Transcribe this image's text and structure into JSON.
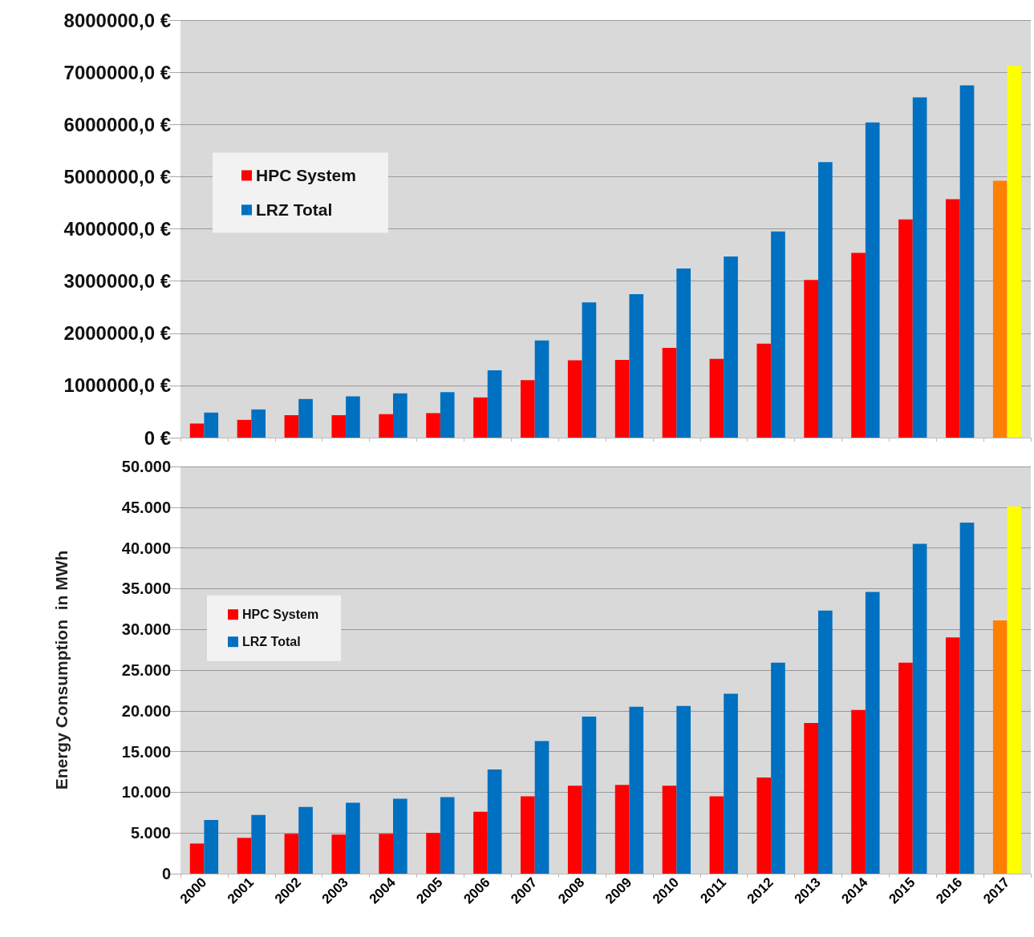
{
  "chart_data": [
    {
      "type": "bar",
      "categories": [
        "2000",
        "2001",
        "2002",
        "2003",
        "2004",
        "2005",
        "2006",
        "2007",
        "2008",
        "2009",
        "2010",
        "2011",
        "2012",
        "2013",
        "2014",
        "2015",
        "2016",
        "2017"
      ],
      "series": [
        {
          "name": "HPC System",
          "color": "#ff0000",
          "colors": [
            "#ff0000",
            "#ff0000",
            "#ff0000",
            "#ff0000",
            "#ff0000",
            "#ff0000",
            "#ff0000",
            "#ff0000",
            "#ff0000",
            "#ff0000",
            "#ff0000",
            "#ff0000",
            "#ff0000",
            "#ff0000",
            "#ff0000",
            "#ff0000",
            "#ff0000",
            "#ff8000"
          ],
          "values": [
            270000,
            340000,
            430000,
            430000,
            450000,
            470000,
            770000,
            1100000,
            1480000,
            1490000,
            1720000,
            1510000,
            1800000,
            3020000,
            3540000,
            4180000,
            4570000,
            4920000
          ]
        },
        {
          "name": "LRZ Total",
          "color": "#0070c0",
          "colors": [
            "#0070c0",
            "#0070c0",
            "#0070c0",
            "#0070c0",
            "#0070c0",
            "#0070c0",
            "#0070c0",
            "#0070c0",
            "#0070c0",
            "#0070c0",
            "#0070c0",
            "#0070c0",
            "#0070c0",
            "#0070c0",
            "#0070c0",
            "#0070c0",
            "#0070c0",
            "#ffff00"
          ],
          "values": [
            480000,
            540000,
            740000,
            790000,
            850000,
            870000,
            1290000,
            1860000,
            2590000,
            2750000,
            3240000,
            3470000,
            3950000,
            5280000,
            6040000,
            6520000,
            6750000,
            7120000
          ]
        }
      ],
      "ylim": [
        0,
        8000000
      ],
      "yticks": [
        {
          "value": 0,
          "label": "0 €"
        },
        {
          "value": 1000000,
          "label": "1000000,0 €"
        },
        {
          "value": 2000000,
          "label": "2000000,0 €"
        },
        {
          "value": 3000000,
          "label": "3000000,0 €"
        },
        {
          "value": 4000000,
          "label": "4000000,0 €"
        },
        {
          "value": 5000000,
          "label": "5000000,0 €"
        },
        {
          "value": 6000000,
          "label": "6000000,0 €"
        },
        {
          "value": 7000000,
          "label": "7000000,0 €"
        },
        {
          "value": 8000000,
          "label": "8000000,0 €"
        }
      ],
      "grid": "y",
      "legend": "top left",
      "tick_labels": "y"
    },
    {
      "type": "bar",
      "ylabel": "Energy Consumption  in MWh",
      "categories": [
        "2000",
        "2001",
        "2002",
        "2003",
        "2004",
        "2005",
        "2006",
        "2007",
        "2008",
        "2009",
        "2010",
        "2011",
        "2012",
        "2013",
        "2014",
        "2015",
        "2016",
        "2017"
      ],
      "series": [
        {
          "name": "HPC System",
          "color": "#ff0000",
          "colors": [
            "#ff0000",
            "#ff0000",
            "#ff0000",
            "#ff0000",
            "#ff0000",
            "#ff0000",
            "#ff0000",
            "#ff0000",
            "#ff0000",
            "#ff0000",
            "#ff0000",
            "#ff0000",
            "#ff0000",
            "#ff0000",
            "#ff0000",
            "#ff0000",
            "#ff0000",
            "#ff8000"
          ],
          "values": [
            3700,
            4400,
            4900,
            4800,
            4900,
            5000,
            7600,
            9500,
            10800,
            10900,
            10800,
            9500,
            11800,
            18500,
            20100,
            25900,
            29000,
            31100
          ]
        },
        {
          "name": "LRZ Total",
          "color": "#0070c0",
          "colors": [
            "#0070c0",
            "#0070c0",
            "#0070c0",
            "#0070c0",
            "#0070c0",
            "#0070c0",
            "#0070c0",
            "#0070c0",
            "#0070c0",
            "#0070c0",
            "#0070c0",
            "#0070c0",
            "#0070c0",
            "#0070c0",
            "#0070c0",
            "#0070c0",
            "#0070c0",
            "#ffff00"
          ],
          "values": [
            6600,
            7200,
            8200,
            8700,
            9200,
            9400,
            12800,
            16300,
            19300,
            20500,
            20600,
            22100,
            25900,
            32300,
            34600,
            40500,
            43100,
            45100
          ]
        }
      ],
      "ylim": [
        0,
        50000
      ],
      "yticks": [
        {
          "value": 0,
          "label": "0"
        },
        {
          "value": 5000,
          "label": "5.000"
        },
        {
          "value": 10000,
          "label": "10.000"
        },
        {
          "value": 15000,
          "label": "15.000"
        },
        {
          "value": 20000,
          "label": "20.000"
        },
        {
          "value": 25000,
          "label": "25.000"
        },
        {
          "value": 30000,
          "label": "30.000"
        },
        {
          "value": 35000,
          "label": "35.000"
        },
        {
          "value": 40000,
          "label": "40.000"
        },
        {
          "value": 45000,
          "label": "45.000"
        },
        {
          "value": 50000,
          "label": "50.000"
        }
      ],
      "grid": "y",
      "legend": "left"
    }
  ]
}
